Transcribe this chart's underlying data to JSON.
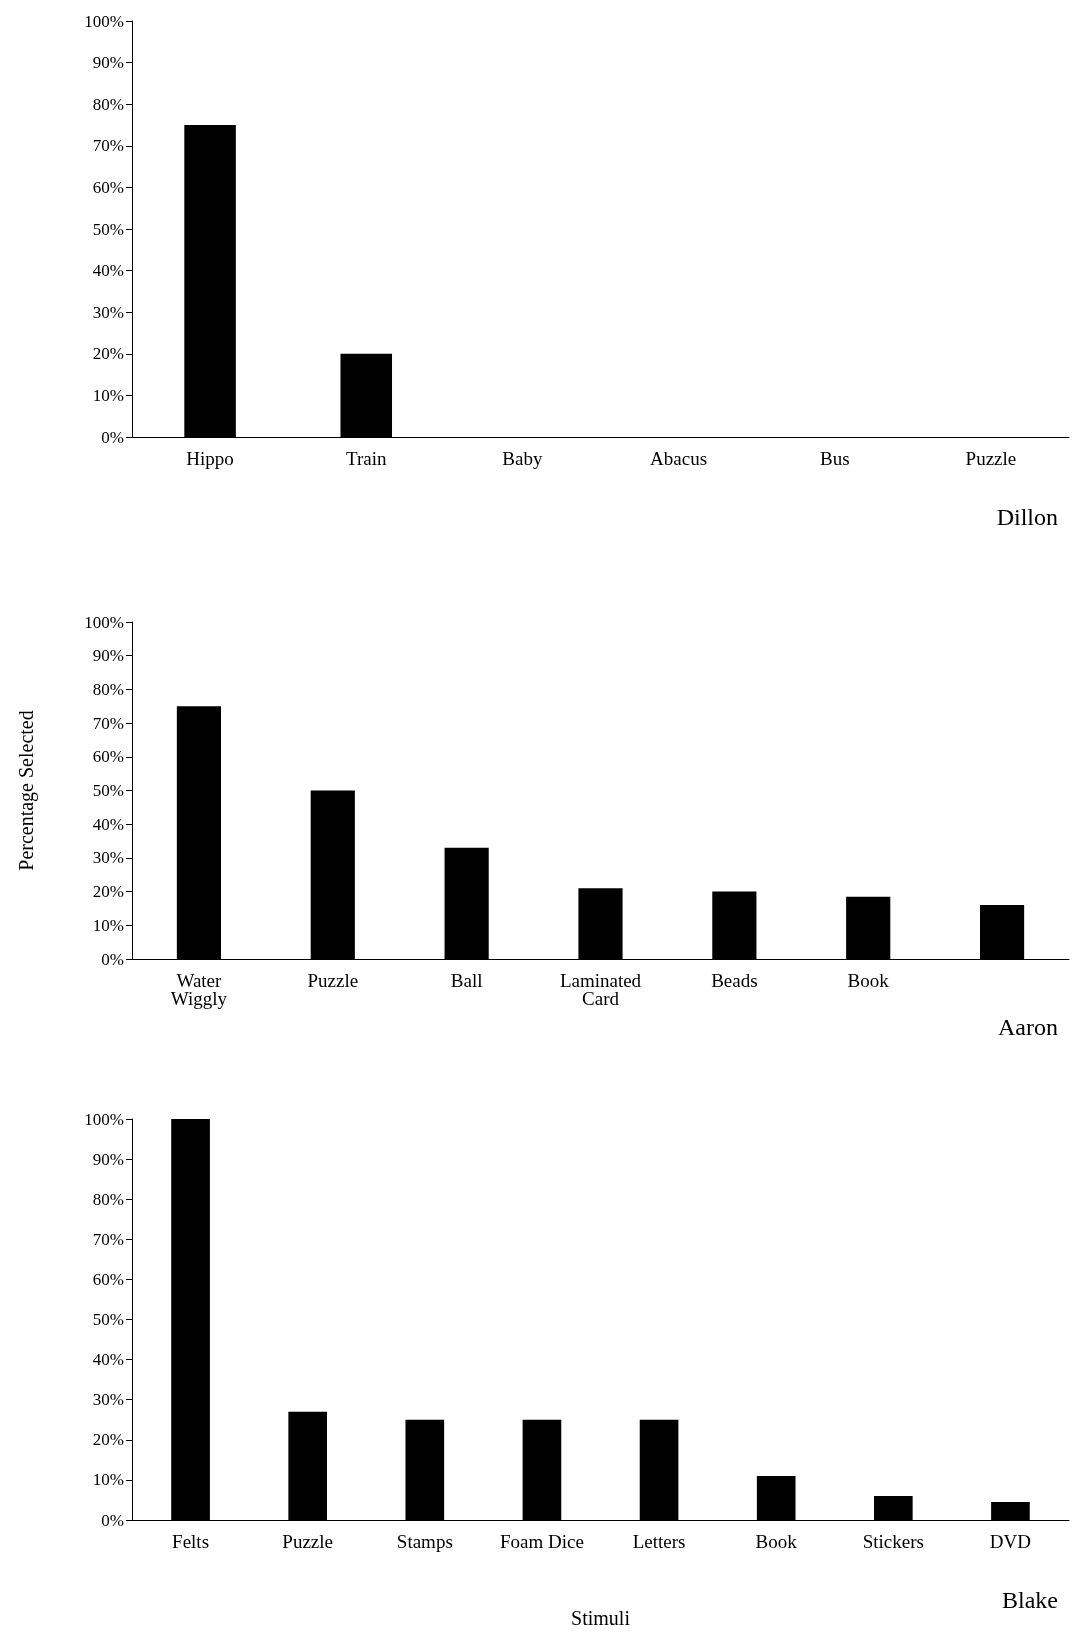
{
  "chart_data": [
    {
      "type": "bar",
      "title": "Dillon",
      "categories": [
        "Hippo",
        "Train",
        "Baby",
        "Abacus",
        "Bus",
        "Puzzle"
      ],
      "values": [
        75,
        20,
        0,
        0,
        0,
        0
      ],
      "color": "#000000",
      "ylim": [
        0,
        100
      ],
      "yticks": [
        {
          "value": 0,
          "label": "0%"
        },
        {
          "value": 10,
          "label": "10%"
        },
        {
          "value": 20,
          "label": "20%"
        },
        {
          "value": 30,
          "label": "30%"
        },
        {
          "value": 40,
          "label": "40%"
        },
        {
          "value": 50,
          "label": "50%"
        },
        {
          "value": 60,
          "label": "60%"
        },
        {
          "value": 70,
          "label": "70%"
        },
        {
          "value": 80,
          "label": "80%"
        },
        {
          "value": 90,
          "label": "90%"
        },
        {
          "value": 100,
          "label": "100%"
        }
      ],
      "grid": false
    },
    {
      "type": "bar",
      "title": "Aaron",
      "ylabel": "Percentage Selected",
      "categories": [
        "Water\nWiggly",
        "Puzzle",
        "Ball",
        "Laminated\nCard",
        "Beads",
        "Book",
        null
      ],
      "values": [
        75,
        50,
        33,
        21,
        20,
        18.5,
        16
      ],
      "color": "#000000",
      "ylim": [
        0,
        100
      ],
      "yticks": [
        {
          "value": 0,
          "label": "0%"
        },
        {
          "value": 10,
          "label": "10%"
        },
        {
          "value": 20,
          "label": "20%"
        },
        {
          "value": 30,
          "label": "30%"
        },
        {
          "value": 40,
          "label": "40%"
        },
        {
          "value": 50,
          "label": "50%"
        },
        {
          "value": 60,
          "label": "60%"
        },
        {
          "value": 70,
          "label": "70%"
        },
        {
          "value": 80,
          "label": "80%"
        },
        {
          "value": 90,
          "label": "90%"
        },
        {
          "value": 100,
          "label": "100%"
        }
      ],
      "grid": false
    },
    {
      "type": "bar",
      "title": "Blake",
      "xlabel": "Stimuli",
      "categories": [
        "Felts",
        "Puzzle",
        "Stamps",
        "Foam Dice",
        "Letters",
        "Book",
        "Stickers",
        "DVD"
      ],
      "values": [
        100,
        27,
        25,
        25,
        25,
        11,
        6,
        4.5
      ],
      "color": "#000000",
      "ylim": [
        0,
        100
      ],
      "yticks": [
        {
          "value": 0,
          "label": "0%"
        },
        {
          "value": 10,
          "label": "10%"
        },
        {
          "value": 20,
          "label": "20%"
        },
        {
          "value": 30,
          "label": "30%"
        },
        {
          "value": 40,
          "label": "40%"
        },
        {
          "value": 50,
          "label": "50%"
        },
        {
          "value": 60,
          "label": "60%"
        },
        {
          "value": 70,
          "label": "70%"
        },
        {
          "value": 80,
          "label": "80%"
        },
        {
          "value": 90,
          "label": "90%"
        },
        {
          "value": 100,
          "label": "100%"
        }
      ],
      "grid": false
    }
  ]
}
